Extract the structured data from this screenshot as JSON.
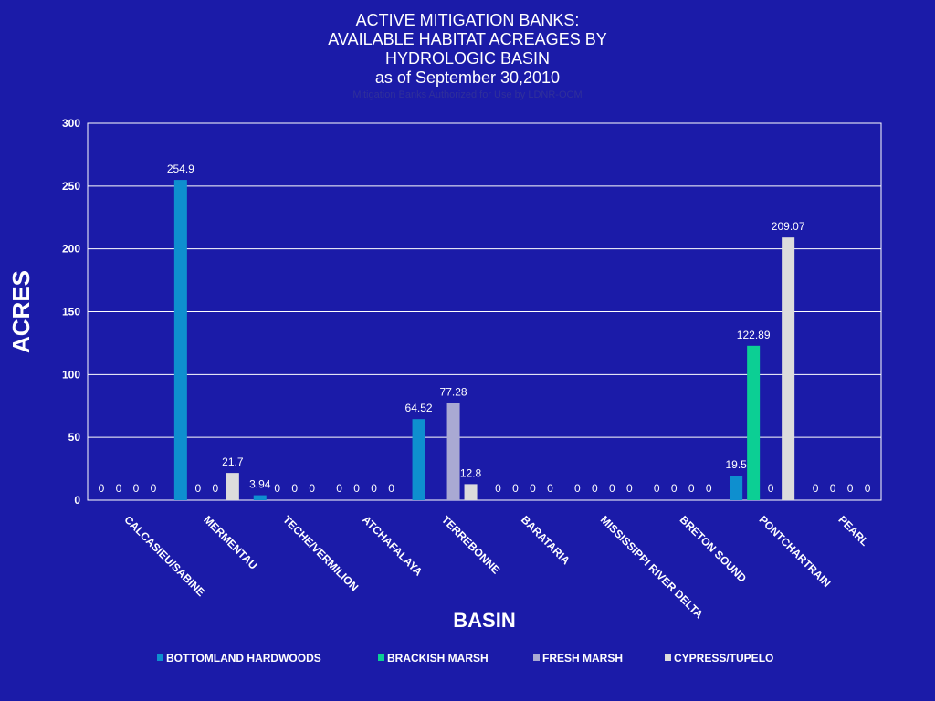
{
  "colors": {
    "background": "#1b1ba8",
    "grid": "#ffffff",
    "text": "#ffffff"
  },
  "chart_data": {
    "type": "bar",
    "title_lines": [
      "ACTIVE MITIGATION BANKS:",
      "AVAILABLE HABITAT ACREAGES BY",
      "HYDROLOGIC BASIN",
      "as of September 30,2010"
    ],
    "subtitle": "Mitigation Banks Authorized for Use by LDNR-OCM",
    "xlabel": "BASIN",
    "ylabel": "ACRES",
    "ylim": [
      0,
      300
    ],
    "yticks": [
      0,
      50,
      100,
      150,
      200,
      250,
      300
    ],
    "grid": true,
    "legend_position": "bottom",
    "categories": [
      "CALCASIEU/SABINE",
      "MERMENTAU",
      "TECHE/VERMILION",
      "ATCHAFALAYA",
      "TERREBONNE",
      "BARATARIA",
      "MISSISSIPPI RIVER DELTA",
      "BRETON SOUND",
      "PONTCHARTRAIN",
      "PEARL"
    ],
    "series": [
      {
        "name": "BOTTOMLAND HARDWOODS",
        "color": "#0e8fcf",
        "values": [
          0,
          254.9,
          3.94,
          0,
          64.52,
          0,
          0,
          0,
          19.5,
          0
        ],
        "labels": [
          "0",
          "254.9",
          "3.94",
          "0",
          "64.52",
          "0",
          "0",
          "0",
          "19.5",
          "0"
        ]
      },
      {
        "name": "BRACKISH MARSH",
        "color": "#0ccf94",
        "values": [
          0,
          0,
          0,
          0,
          0,
          0,
          0,
          0,
          122.89,
          0
        ],
        "labels": [
          "0",
          "0",
          "0",
          "0",
          "",
          "0",
          "0",
          "0",
          "122.89",
          "0"
        ]
      },
      {
        "name": "FRESH MARSH",
        "color": "#a9a9d3",
        "values": [
          0,
          0,
          0,
          0,
          77.28,
          0,
          0,
          0,
          0,
          0
        ],
        "labels": [
          "0",
          "0",
          "0",
          "0",
          "77.28",
          "0",
          "0",
          "0",
          "0",
          "0"
        ]
      },
      {
        "name": "CYPRESS/TUPELO",
        "color": "#dcdcdc",
        "values": [
          0,
          21.7,
          0,
          0,
          12.8,
          0,
          0,
          0,
          209.07,
          0
        ],
        "labels": [
          "0",
          "21.7",
          "0",
          "0",
          "12.8",
          "0",
          "0",
          "0",
          "209.07",
          "0"
        ]
      }
    ]
  }
}
